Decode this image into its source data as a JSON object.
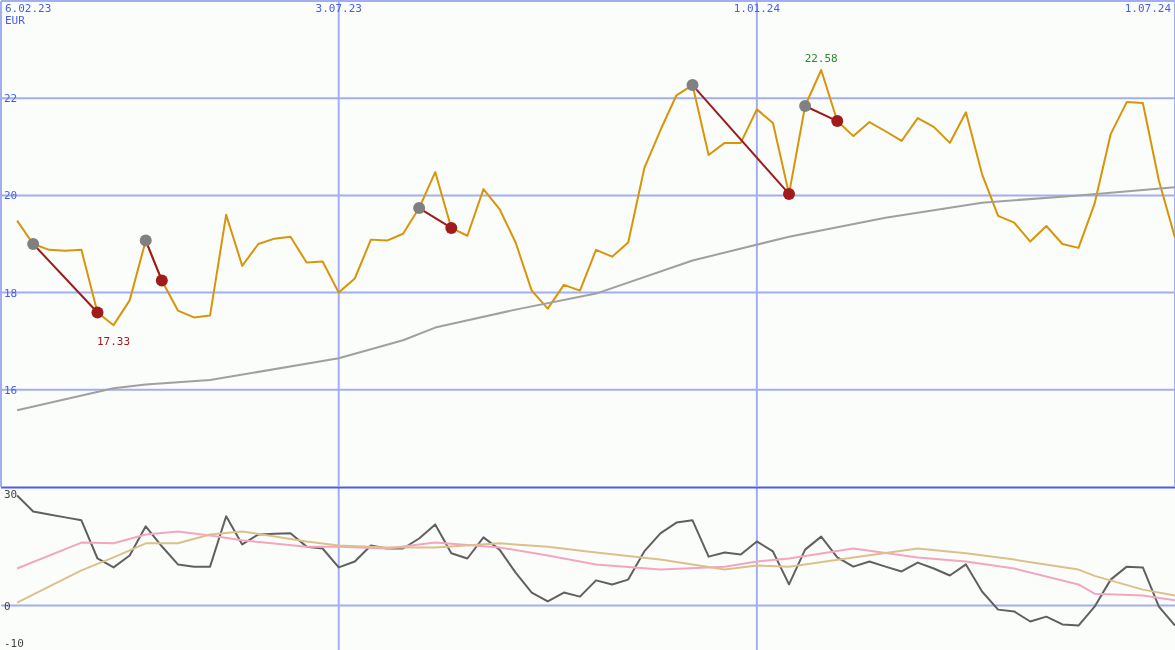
{
  "chart_data": [
    {
      "type": "line",
      "ylabel": "EUR",
      "x": [
        "2023-02-13",
        "2023-02-20",
        "2023-02-27",
        "2023-03-06",
        "2023-03-13",
        "2023-03-20",
        "2023-03-27",
        "2023-04-03",
        "2023-04-10",
        "2023-04-17",
        "2023-04-24",
        "2023-05-01",
        "2023-05-08",
        "2023-05-15",
        "2023-05-22",
        "2023-05-29",
        "2023-06-05",
        "2023-06-12",
        "2023-06-19",
        "2023-06-26",
        "2023-07-03",
        "2023-07-10",
        "2023-07-17",
        "2023-07-24",
        "2023-07-31",
        "2023-08-07",
        "2023-08-14",
        "2023-08-21",
        "2023-08-28",
        "2023-09-04",
        "2023-09-11",
        "2023-09-18",
        "2023-09-25",
        "2023-10-02",
        "2023-10-09",
        "2023-10-16",
        "2023-10-23",
        "2023-10-30",
        "2023-11-06",
        "2023-11-13",
        "2023-11-20",
        "2023-11-27",
        "2023-12-04",
        "2023-12-11",
        "2023-12-18",
        "2023-12-25",
        "2024-01-01",
        "2024-01-08",
        "2024-01-15",
        "2024-01-22",
        "2024-01-29",
        "2024-02-05",
        "2024-02-12",
        "2024-02-19",
        "2024-02-26",
        "2024-03-04",
        "2024-03-11",
        "2024-03-18",
        "2024-03-25",
        "2024-04-01",
        "2024-04-08",
        "2024-04-15",
        "2024-04-22",
        "2024-04-29",
        "2024-05-06",
        "2024-05-13",
        "2024-05-20",
        "2024-05-27",
        "2024-06-03",
        "2024-06-10",
        "2024-06-17",
        "2024-06-24",
        "2024-07-01"
      ],
      "xlim": [
        "2023-02-06",
        "2024-07-01"
      ],
      "xticks": [
        {
          "value": "2023-02-06",
          "label": "6.02.23"
        },
        {
          "value": "2023-07-03",
          "label": "3.07.23"
        },
        {
          "value": "2024-01-01",
          "label": "1.01.24"
        },
        {
          "value": "2024-07-01",
          "label": "1.07.24"
        }
      ],
      "ylim": [
        14,
        24
      ],
      "yticks": [
        16,
        18,
        20,
        22
      ],
      "grid": true,
      "legend": false,
      "annotations": [
        {
          "text": "22.58",
          "x": "2024-01-29",
          "y": 22.58
        },
        {
          "text": "17.33",
          "x": "2023-03-27",
          "y": 17.33
        }
      ],
      "series": [
        {
          "type": "line",
          "color": "#d8940a",
          "values": [
            19.48,
            19.0,
            18.88,
            18.86,
            18.88,
            17.59,
            17.33,
            17.84,
            19.07,
            18.25,
            17.63,
            17.49,
            17.53,
            19.6,
            18.55,
            19.0,
            19.11,
            19.15,
            18.62,
            18.64,
            18.0,
            18.29,
            19.09,
            19.07,
            19.21,
            19.74,
            20.48,
            19.33,
            19.17,
            20.13,
            19.72,
            19.03,
            18.04,
            17.67,
            18.16,
            18.04,
            18.88,
            18.74,
            19.03,
            20.56,
            21.34,
            22.06,
            22.27,
            20.83,
            21.08,
            21.08,
            21.77,
            21.49,
            20.03,
            21.84,
            22.58,
            21.53,
            21.22,
            21.51,
            21.32,
            21.12,
            21.59,
            21.41,
            21.08,
            21.71,
            20.44,
            19.58,
            19.44,
            19.05,
            19.37,
            19.0,
            18.92,
            19.83,
            21.26,
            21.92,
            21.9,
            20.3,
            19.13
          ]
        },
        {
          "type": "line",
          "color": "#a0a0a0",
          "x": [
            "2023-02-13",
            "2023-03-27",
            "2023-04-10",
            "2023-05-08",
            "2023-07-03",
            "2023-07-31",
            "2023-08-14",
            "2023-09-18",
            "2023-10-23",
            "2023-12-04",
            "2024-01-15",
            "2024-02-26",
            "2024-04-08",
            "2024-05-20",
            "2024-07-01"
          ],
          "values": [
            15.58,
            16.03,
            16.11,
            16.2,
            16.65,
            17.02,
            17.28,
            17.65,
            17.98,
            18.66,
            19.15,
            19.54,
            19.85,
            20.0,
            20.17
          ]
        },
        {
          "type": "line",
          "color": "#9b1c1c",
          "x": [
            "2023-02-20",
            "2023-03-20"
          ],
          "values": [
            19.0,
            17.59
          ]
        },
        {
          "type": "line",
          "color": "#9b1c1c",
          "x": [
            "2023-04-10",
            "2023-04-17"
          ],
          "values": [
            19.07,
            18.25
          ]
        },
        {
          "type": "line",
          "color": "#9b1c1c",
          "x": [
            "2023-08-07",
            "2023-08-21"
          ],
          "values": [
            19.74,
            19.33
          ]
        },
        {
          "type": "line",
          "color": "#9b1c1c",
          "x": [
            "2023-12-04",
            "2024-01-15"
          ],
          "values": [
            22.27,
            20.03
          ]
        },
        {
          "type": "line",
          "color": "#9b1c1c",
          "x": [
            "2024-01-22",
            "2024-02-05"
          ],
          "values": [
            21.84,
            21.53
          ]
        },
        {
          "type": "scatter",
          "marker": "circle",
          "color": "#808080",
          "x": [
            "2023-02-20",
            "2023-04-10",
            "2023-08-07",
            "2023-12-04",
            "2024-01-22"
          ],
          "values": [
            19.0,
            19.07,
            19.74,
            22.27,
            21.84
          ]
        },
        {
          "type": "scatter",
          "marker": "circle",
          "color": "#a01c1c",
          "x": [
            "2023-03-20",
            "2023-04-17",
            "2023-08-21",
            "2024-01-15",
            "2024-02-05"
          ],
          "values": [
            17.59,
            18.25,
            19.33,
            20.03,
            21.53
          ]
        }
      ]
    },
    {
      "type": "line",
      "x": [
        "2023-02-13",
        "2023-02-20",
        "2023-02-27",
        "2023-03-06",
        "2023-03-13",
        "2023-03-20",
        "2023-03-27",
        "2023-04-03",
        "2023-04-10",
        "2023-04-17",
        "2023-04-24",
        "2023-05-01",
        "2023-05-08",
        "2023-05-15",
        "2023-05-22",
        "2023-05-29",
        "2023-06-05",
        "2023-06-12",
        "2023-06-19",
        "2023-06-26",
        "2023-07-03",
        "2023-07-10",
        "2023-07-17",
        "2023-07-24",
        "2023-07-31",
        "2023-08-07",
        "2023-08-14",
        "2023-08-21",
        "2023-08-28",
        "2023-09-04",
        "2023-09-11",
        "2023-09-18",
        "2023-09-25",
        "2023-10-02",
        "2023-10-09",
        "2023-10-16",
        "2023-10-23",
        "2023-10-30",
        "2023-11-06",
        "2023-11-13",
        "2023-11-20",
        "2023-11-27",
        "2023-12-04",
        "2023-12-11",
        "2023-12-18",
        "2023-12-25",
        "2024-01-01",
        "2024-01-08",
        "2024-01-15",
        "2024-01-22",
        "2024-01-29",
        "2024-02-05",
        "2024-02-12",
        "2024-02-19",
        "2024-02-26",
        "2024-03-04",
        "2024-03-11",
        "2024-03-18",
        "2024-03-25",
        "2024-04-01",
        "2024-04-08",
        "2024-04-15",
        "2024-04-22",
        "2024-04-29",
        "2024-05-06",
        "2024-05-13",
        "2024-05-20",
        "2024-05-27",
        "2024-06-03",
        "2024-06-10",
        "2024-06-17",
        "2024-06-24",
        "2024-07-01"
      ],
      "xlim": [
        "2023-02-06",
        "2024-07-01"
      ],
      "ylim": [
        -12,
        32
      ],
      "yticks": [
        30,
        0,
        -10
      ],
      "grid": false,
      "legend": false,
      "ref_lines": [
        {
          "axis": "y",
          "value": 0
        },
        {
          "axis": "x",
          "value": "2023-07-03"
        },
        {
          "axis": "x",
          "value": "2024-01-01"
        }
      ],
      "series": [
        {
          "type": "line",
          "color": "#606060",
          "values": [
            29.7,
            25.4,
            24.6,
            23.8,
            23.0,
            12.7,
            10.3,
            13.5,
            21.4,
            16,
            11.1,
            10.5,
            10.5,
            24.1,
            16.5,
            19.2,
            19.4,
            19.5,
            15.9,
            15.4,
            10.3,
            11.9,
            16.2,
            15.4,
            15.4,
            18.1,
            21.9,
            14.1,
            12.7,
            18.4,
            15.1,
            8.9,
            3.5,
            1.1,
            3.5,
            2.4,
            6.8,
            5.7,
            7.0,
            14.6,
            19.5,
            22.4,
            23,
            13.2,
            14.3,
            13.8,
            17.3,
            14.6,
            5.7,
            15.1,
            18.6,
            13,
            10.5,
            11.9,
            10.5,
            9.2,
            11.6,
            10,
            8.1,
            11.1,
            3.8,
            -1.1,
            -1.6,
            -4.3,
            -3.0,
            -5.1,
            -5.4,
            -0.3,
            7.0,
            10.5,
            10.3,
            -0.3,
            -5.4
          ]
        },
        {
          "type": "line",
          "color": "#f4a6c0",
          "x": [
            "2023-02-13",
            "2023-03-13",
            "2023-03-27",
            "2023-04-10",
            "2023-04-24",
            "2023-05-08",
            "2023-05-22",
            "2023-06-19",
            "2023-07-03",
            "2023-07-24",
            "2023-08-14",
            "2023-09-11",
            "2023-10-02",
            "2023-10-23",
            "2023-11-20",
            "2023-12-18",
            "2024-01-01",
            "2024-01-15",
            "2024-02-12",
            "2024-03-11",
            "2024-04-01",
            "2024-04-22",
            "2024-05-20",
            "2024-05-27",
            "2024-06-17",
            "2024-07-01"
          ],
          "values": [
            10.0,
            17.0,
            16.8,
            19.2,
            20.0,
            18.9,
            17.6,
            15.9,
            15.9,
            15.4,
            17.0,
            15.7,
            13.5,
            11.1,
            9.7,
            10.5,
            11.9,
            12.7,
            15.4,
            13.0,
            11.9,
            10.0,
            5.7,
            3.2,
            2.7,
            1.4
          ]
        },
        {
          "type": "line",
          "color": "#dcc08c",
          "x": [
            "2023-02-13",
            "2023-03-13",
            "2023-03-27",
            "2023-04-10",
            "2023-04-24",
            "2023-05-08",
            "2023-05-22",
            "2023-06-19",
            "2023-07-03",
            "2023-07-24",
            "2023-08-14",
            "2023-09-11",
            "2023-10-02",
            "2023-10-23",
            "2023-11-20",
            "2023-12-18",
            "2024-01-01",
            "2024-01-15",
            "2024-02-12",
            "2024-03-11",
            "2024-04-01",
            "2024-04-22",
            "2024-05-20",
            "2024-05-27",
            "2024-06-17",
            "2024-07-01"
          ],
          "values": [
            0.8,
            9.5,
            13.0,
            16.8,
            16.8,
            19.2,
            20.0,
            17.3,
            16.2,
            15.7,
            15.7,
            16.8,
            15.9,
            14.3,
            12.4,
            9.7,
            10.8,
            10.5,
            13.0,
            15.4,
            14.1,
            12.4,
            9.7,
            8.0,
            4.3,
            2.7
          ]
        }
      ]
    }
  ]
}
